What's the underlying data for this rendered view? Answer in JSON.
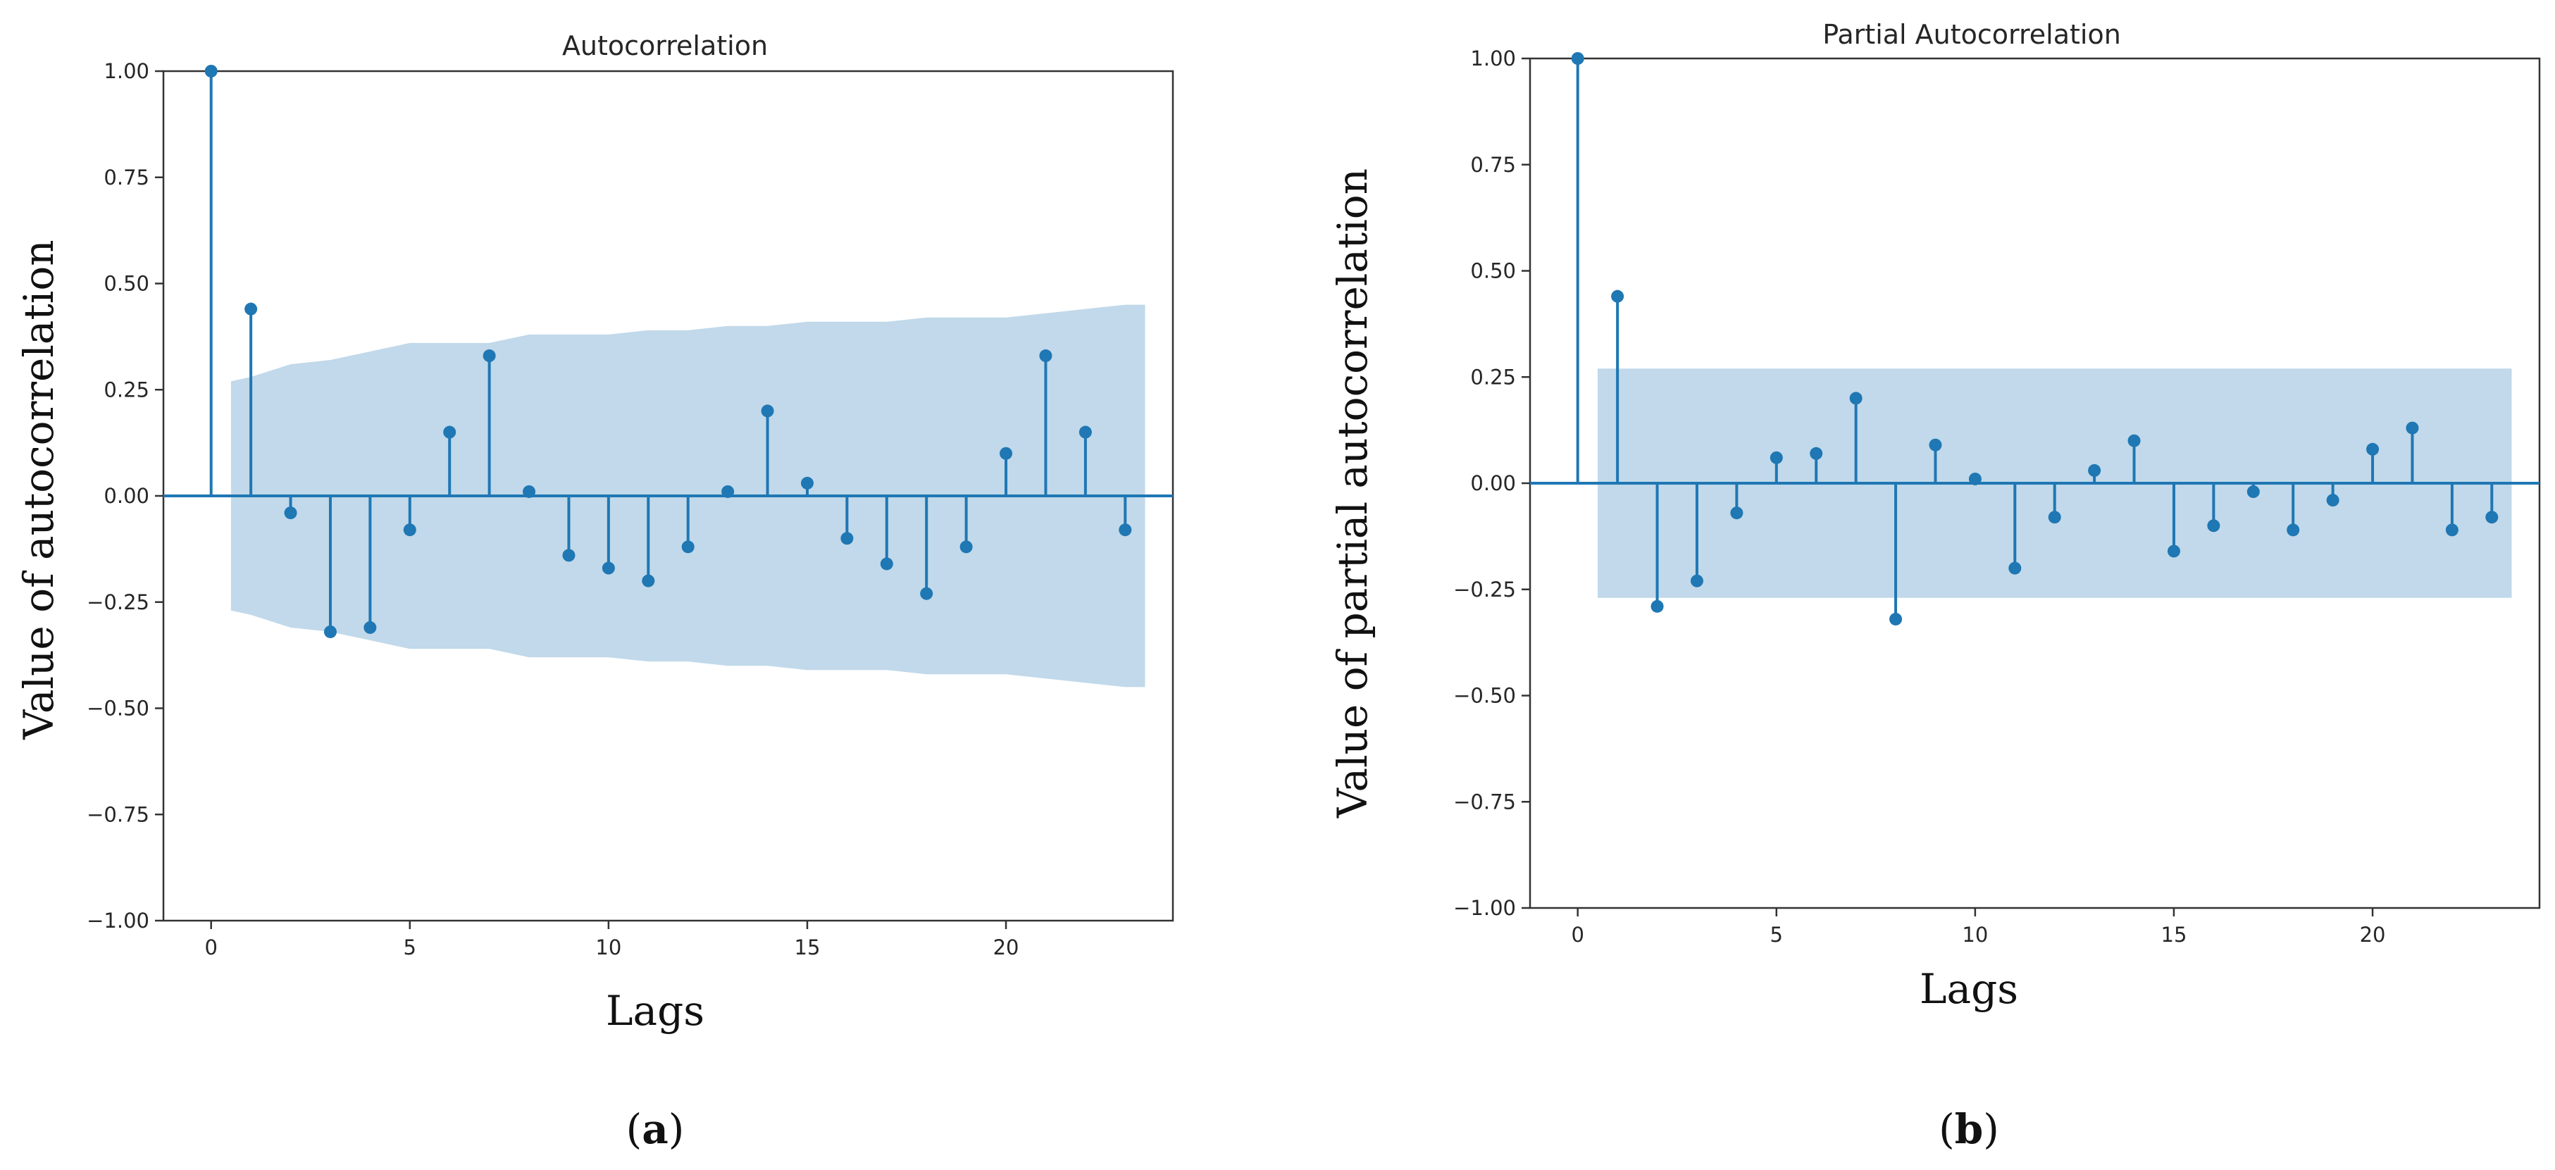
{
  "chart_data": [
    {
      "type": "stem",
      "title": "Autocorrelation",
      "xlabel": "Lags",
      "ylabel": "Value of autocorrelation",
      "panel_label": "a",
      "ylim": [
        -1.0,
        1.0
      ],
      "xlim": [
        -1.2,
        24.2
      ],
      "yticks": [
        "1.00",
        "0.75",
        "0.50",
        "0.25",
        "0.00",
        "−0.25",
        "−0.50",
        "−0.75",
        "−1.00"
      ],
      "ytick_values": [
        1.0,
        0.75,
        0.5,
        0.25,
        0.0,
        -0.25,
        -0.5,
        -0.75,
        -1.0
      ],
      "xticks": [
        "0",
        "5",
        "10",
        "15",
        "20"
      ],
      "xtick_values": [
        0,
        5,
        10,
        15,
        20
      ],
      "lags": [
        0,
        1,
        2,
        3,
        4,
        5,
        6,
        7,
        8,
        9,
        10,
        11,
        12,
        13,
        14,
        15,
        16,
        17,
        18,
        19,
        20,
        21,
        22,
        23
      ],
      "values": [
        1.0,
        0.44,
        -0.04,
        -0.32,
        -0.31,
        -0.08,
        0.15,
        0.33,
        0.01,
        -0.14,
        -0.17,
        -0.2,
        -0.12,
        0.01,
        0.2,
        0.03,
        -0.1,
        -0.16,
        -0.23,
        -0.12,
        0.1,
        0.33,
        0.15,
        -0.08
      ],
      "confidence_band": {
        "lags": [
          0.5,
          1,
          2,
          3,
          4,
          5,
          6,
          7,
          8,
          9,
          10,
          11,
          12,
          13,
          14,
          15,
          16,
          17,
          18,
          19,
          20,
          21,
          22,
          23,
          23.5
        ],
        "upper": [
          0.27,
          0.28,
          0.31,
          0.32,
          0.34,
          0.36,
          0.36,
          0.36,
          0.38,
          0.38,
          0.38,
          0.39,
          0.39,
          0.4,
          0.4,
          0.41,
          0.41,
          0.41,
          0.42,
          0.42,
          0.42,
          0.43,
          0.44,
          0.45,
          0.45
        ]
      }
    },
    {
      "type": "stem",
      "title": "Partial Autocorrelation",
      "xlabel": "Lags",
      "ylabel": "Value of partial autocorrelation",
      "panel_label": "b",
      "ylim": [
        -1.0,
        1.0
      ],
      "xlim": [
        -1.2,
        24.2
      ],
      "yticks": [
        "1.00",
        "0.75",
        "0.50",
        "0.25",
        "0.00",
        "−0.25",
        "−0.50",
        "−0.75",
        "−1.00"
      ],
      "ytick_values": [
        1.0,
        0.75,
        0.5,
        0.25,
        0.0,
        -0.25,
        -0.5,
        -0.75,
        -1.0
      ],
      "xticks": [
        "0",
        "5",
        "10",
        "15",
        "20"
      ],
      "xtick_values": [
        0,
        5,
        10,
        15,
        20
      ],
      "lags": [
        0,
        1,
        2,
        3,
        4,
        5,
        6,
        7,
        8,
        9,
        10,
        11,
        12,
        13,
        14,
        15,
        16,
        17,
        18,
        19,
        20,
        21,
        22,
        23
      ],
      "values": [
        1.0,
        0.44,
        -0.29,
        -0.23,
        -0.07,
        0.06,
        0.07,
        0.2,
        -0.32,
        0.09,
        0.01,
        -0.2,
        -0.08,
        0.03,
        0.1,
        -0.16,
        -0.1,
        -0.02,
        -0.11,
        -0.04,
        0.08,
        0.13,
        -0.11,
        -0.08
      ],
      "confidence_band": {
        "lags": [
          0.5,
          23.5
        ],
        "upper": [
          0.27,
          0.27
        ]
      }
    }
  ]
}
